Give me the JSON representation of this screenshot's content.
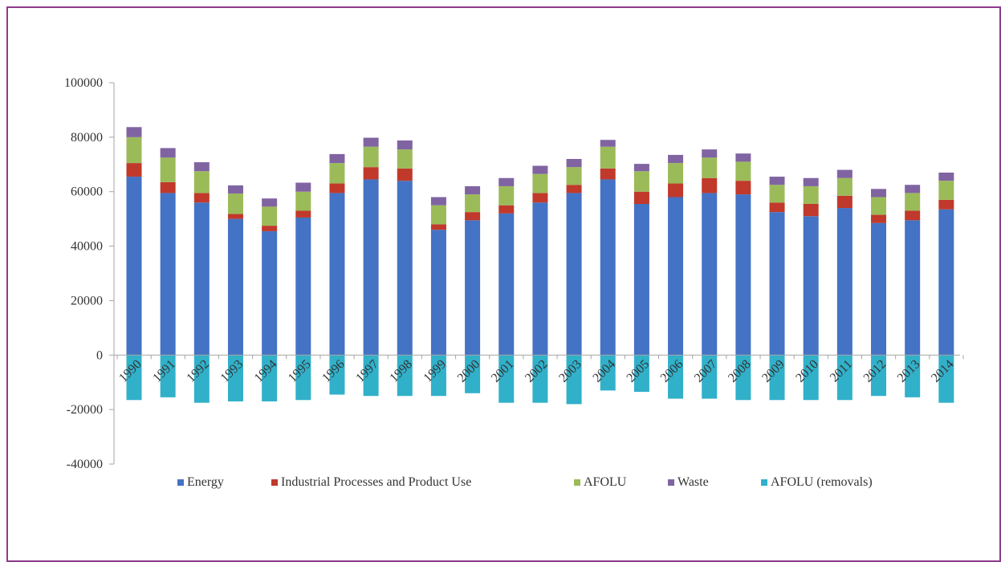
{
  "chart_data": {
    "type": "bar",
    "stacked": true,
    "categories": [
      "1990",
      "1991",
      "1992",
      "1993",
      "1994",
      "1995",
      "1996",
      "1997",
      "1998",
      "1999",
      "2000",
      "2001",
      "2002",
      "2003",
      "2004",
      "2005",
      "2006",
      "2007",
      "2008",
      "2009",
      "2010",
      "2011",
      "2012",
      "2013",
      "2014"
    ],
    "series": [
      {
        "name": "Energy",
        "color": "#4472c4",
        "values": [
          65500,
          59500,
          56000,
          50000,
          45500,
          50500,
          59500,
          64500,
          64000,
          46000,
          49500,
          52000,
          56000,
          59500,
          64500,
          55500,
          58000,
          59500,
          59000,
          52500,
          51000,
          54000,
          48500,
          49500,
          53500
        ]
      },
      {
        "name": "Industrial Processes and Product Use",
        "color": "#c0392b",
        "values": [
          5000,
          4000,
          3500,
          1800,
          2000,
          2500,
          3500,
          4500,
          4500,
          2000,
          3000,
          3000,
          3500,
          3000,
          4000,
          4500,
          5000,
          5500,
          5000,
          3500,
          4500,
          4500,
          3000,
          3500,
          3500
        ]
      },
      {
        "name": "AFOLU",
        "color": "#9bbb59",
        "values": [
          9500,
          9000,
          8000,
          7500,
          7000,
          7000,
          7500,
          7500,
          7000,
          7000,
          6500,
          7000,
          7000,
          6500,
          8000,
          7500,
          7500,
          7500,
          7000,
          6500,
          6500,
          6500,
          6500,
          6500,
          7000
        ]
      },
      {
        "name": "Waste",
        "color": "#8064a2",
        "values": [
          3700,
          3500,
          3300,
          3000,
          3000,
          3300,
          3300,
          3300,
          3300,
          3000,
          3000,
          3000,
          3000,
          3000,
          2500,
          2700,
          3000,
          3000,
          3000,
          3000,
          3000,
          3000,
          3000,
          3000,
          3000
        ]
      },
      {
        "name": "AFOLU (removals)",
        "color": "#31b0c9",
        "values": [
          -16500,
          -15500,
          -17500,
          -17000,
          -17000,
          -16500,
          -14500,
          -15000,
          -15000,
          -15000,
          -14000,
          -17500,
          -17500,
          -18000,
          -13000,
          -13500,
          -16000,
          -16000,
          -16500,
          -16500,
          -16500,
          -16500,
          -15000,
          -15500,
          -17500
        ]
      }
    ],
    "ylim": [
      -40000,
      100000
    ],
    "yticks": [
      100000,
      80000,
      60000,
      40000,
      20000,
      0,
      -20000,
      -40000
    ],
    "grid": false,
    "legend": "bottom",
    "title": "",
    "xlabel": "",
    "ylabel": ""
  }
}
